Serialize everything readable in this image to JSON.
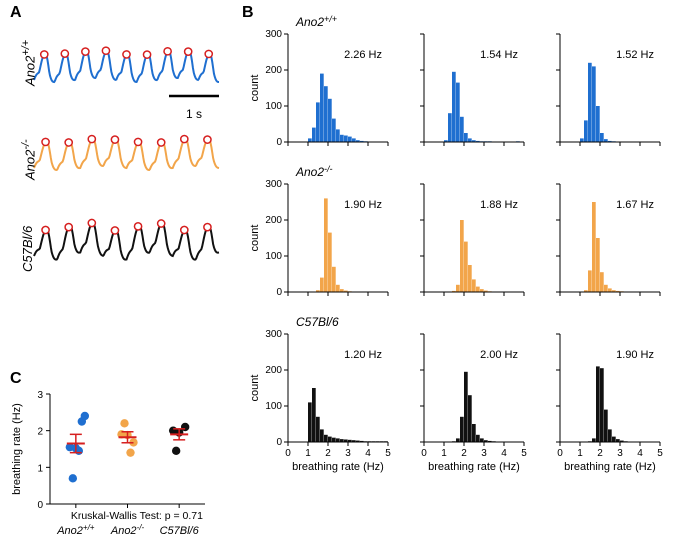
{
  "colors": {
    "ano2pp": "#1f6fd0",
    "ano2mm": "#f2a54a",
    "c57": "#111111",
    "peak_stroke": "#d61f1f",
    "axis": "#000000",
    "error": "#d61f1f"
  },
  "panelA": {
    "label": "A",
    "scalebar_label": "1 s",
    "traces": [
      {
        "name": "Ano2+/+",
        "colorKey": "ano2pp",
        "peak_count": 9
      },
      {
        "name": "Ano2-/-",
        "colorKey": "ano2mm",
        "peak_count": 8
      },
      {
        "name": "C57Bl/6",
        "colorKey": "c57",
        "peak_count": 8
      }
    ]
  },
  "panelB": {
    "label": "B",
    "x_label": "breathing rate (Hz)",
    "y_label": "count",
    "xlim": [
      0,
      5
    ],
    "ylim": [
      0,
      300
    ],
    "xtick_step": 1,
    "ytick_step": 100,
    "label_fontsize": 11,
    "rows": [
      {
        "title": "Ano2+/+",
        "colorKey": "ano2pp",
        "hists": [
          {
            "median_label": "2.26 Hz",
            "bins": [
              0,
              0,
              0,
              0,
              0,
              10,
              40,
              110,
              190,
              155,
              120,
              65,
              35,
              20,
              18,
              15,
              10,
              5,
              3,
              2,
              0,
              0,
              0,
              0,
              0
            ]
          },
          {
            "median_label": "1.54 Hz",
            "bins": [
              0,
              0,
              0,
              0,
              0,
              5,
              80,
              195,
              165,
              70,
              25,
              10,
              5,
              3,
              2,
              2,
              2,
              0,
              0,
              0,
              0,
              0,
              0,
              2,
              0
            ]
          },
          {
            "median_label": "1.52 Hz",
            "bins": [
              0,
              0,
              0,
              0,
              0,
              10,
              60,
              220,
              210,
              100,
              25,
              8,
              3,
              2,
              1,
              0,
              0,
              0,
              0,
              0,
              0,
              0,
              0,
              0,
              0
            ]
          }
        ]
      },
      {
        "title": "Ano2-/-",
        "colorKey": "ano2mm",
        "hists": [
          {
            "median_label": "1.90 Hz",
            "bins": [
              0,
              0,
              0,
              0,
              0,
              0,
              0,
              5,
              40,
              260,
              165,
              70,
              20,
              8,
              4,
              2,
              1,
              0,
              0,
              0,
              0,
              0,
              0,
              0,
              0
            ]
          },
          {
            "median_label": "1.88 Hz",
            "bins": [
              0,
              0,
              0,
              0,
              0,
              0,
              0,
              3,
              20,
              200,
              140,
              75,
              35,
              15,
              8,
              4,
              2,
              1,
              0,
              0,
              0,
              0,
              0,
              0,
              0
            ]
          },
          {
            "median_label": "1.67 Hz",
            "bins": [
              0,
              0,
              0,
              0,
              0,
              0,
              5,
              60,
              250,
              150,
              55,
              20,
              10,
              5,
              3,
              2,
              1,
              0,
              0,
              0,
              0,
              0,
              0,
              0,
              0
            ]
          }
        ]
      },
      {
        "title": "C57Bl/6",
        "colorKey": "c57",
        "hists": [
          {
            "median_label": "1.20 Hz",
            "bins": [
              0,
              0,
              0,
              0,
              0,
              110,
              150,
              70,
              35,
              20,
              15,
              12,
              10,
              8,
              7,
              6,
              5,
              4,
              3,
              2,
              2,
              2,
              2,
              2,
              2
            ]
          },
          {
            "median_label": "2.00 Hz",
            "bins": [
              0,
              0,
              0,
              0,
              0,
              0,
              0,
              2,
              10,
              70,
              195,
              130,
              50,
              20,
              10,
              5,
              3,
              2,
              1,
              1,
              1,
              0,
              0,
              0,
              0
            ]
          },
          {
            "median_label": "1.90 Hz",
            "bins": [
              0,
              0,
              0,
              0,
              0,
              0,
              0,
              2,
              10,
              210,
              205,
              90,
              35,
              15,
              8,
              4,
              2,
              1,
              1,
              1,
              0,
              0,
              0,
              0,
              0
            ]
          }
        ]
      }
    ]
  },
  "panelC": {
    "label": "C",
    "y_label": "breathing rate (Hz)",
    "ylim": [
      0,
      3
    ],
    "ytick_step": 1,
    "stat_note": "Kruskal-Wallis Test: p = 0.71",
    "groups": [
      {
        "name": "Ano2+/+",
        "colorKey": "ano2pp",
        "points": [
          1.55,
          1.52,
          2.25,
          0.7,
          1.45,
          2.4
        ],
        "mean": 1.65,
        "sem": 0.25
      },
      {
        "name": "Ano2-/-",
        "colorKey": "ano2mm",
        "points": [
          1.9,
          1.88,
          1.68,
          2.2,
          1.4
        ],
        "mean": 1.82,
        "sem": 0.15
      },
      {
        "name": "C57Bl/6",
        "colorKey": "c57",
        "points": [
          2.0,
          1.95,
          2.1,
          1.45
        ],
        "mean": 1.9,
        "sem": 0.15
      }
    ]
  }
}
